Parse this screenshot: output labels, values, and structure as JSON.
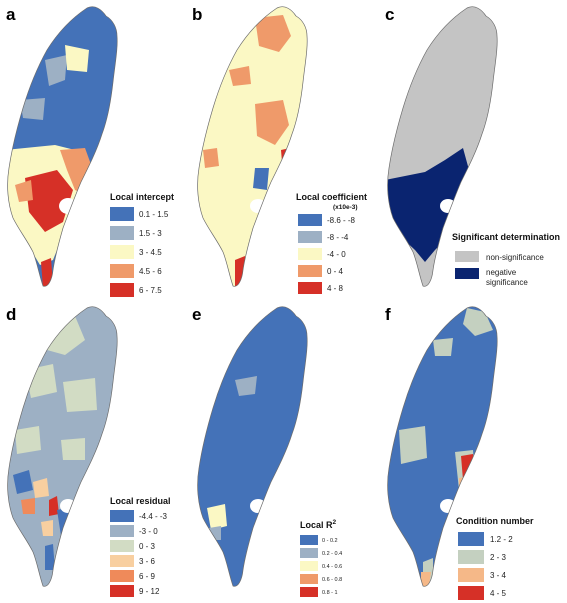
{
  "panels": [
    {
      "letter": "a",
      "legend_title": "Local intercept",
      "legend_subtitle": "",
      "classes": [
        {
          "label": "0.1 - 1.5",
          "color": "#4472b8"
        },
        {
          "label": "1.5 - 3",
          "color": "#9db0c4"
        },
        {
          "label": "3 - 4.5",
          "color": "#fbf8c4"
        },
        {
          "label": "4.5 - 6",
          "color": "#ef9a6a"
        },
        {
          "label": "6 - 7.5",
          "color": "#d63027"
        }
      ]
    },
    {
      "letter": "b",
      "legend_title": "Local coefficient",
      "legend_subtitle": "(x10e-3)",
      "classes": [
        {
          "label": "-8.6 - -8",
          "color": "#4472b8"
        },
        {
          "label": "-8 - -4",
          "color": "#9db0c4"
        },
        {
          "label": "-4 - 0",
          "color": "#fbf8c4"
        },
        {
          "label": "0 - 4",
          "color": "#ef9a6a"
        },
        {
          "label": "4 - 8",
          "color": "#d63027"
        }
      ]
    },
    {
      "letter": "c",
      "legend_title": "Significant determination",
      "legend_subtitle": "",
      "classes": [
        {
          "label": "non-significance",
          "color": "#c4c4c4"
        },
        {
          "label": "negative",
          "label2": "significance",
          "color": "#0a2470"
        }
      ]
    },
    {
      "letter": "d",
      "legend_title": "Local residual",
      "legend_subtitle": "",
      "classes": [
        {
          "label": "-4.4 - -3",
          "color": "#4472b8"
        },
        {
          "label": "-3 - 0",
          "color": "#9db0c4"
        },
        {
          "label": "0 - 3",
          "color": "#d2dcc4"
        },
        {
          "label": "3 - 6",
          "color": "#f8cfa0"
        },
        {
          "label": "6 - 9",
          "color": "#ef8a5a"
        },
        {
          "label": "9 - 12",
          "color": "#d63027"
        }
      ]
    },
    {
      "letter": "e",
      "legend_title": "Local R",
      "legend_title_sup": "2",
      "legend_subtitle": "",
      "classes": [
        {
          "label": "0 - 0.2",
          "color": "#4472b8"
        },
        {
          "label": "0.2 - 0.4",
          "color": "#9db0c4"
        },
        {
          "label": "0.4 - 0.6",
          "color": "#fbf8c4"
        },
        {
          "label": "0.6 - 0.8",
          "color": "#ef9a6a"
        },
        {
          "label": "0.8 - 1",
          "color": "#d63027"
        }
      ]
    },
    {
      "letter": "f",
      "legend_title": "Condition number",
      "legend_subtitle": "",
      "classes": [
        {
          "label": "1.2 - 2",
          "color": "#4472b8"
        },
        {
          "label": "2 - 3",
          "color": "#c4d0c0"
        },
        {
          "label": "3 - 4",
          "color": "#f5b888"
        },
        {
          "label": "4 - 5",
          "color": "#d63027"
        }
      ]
    }
  ]
}
